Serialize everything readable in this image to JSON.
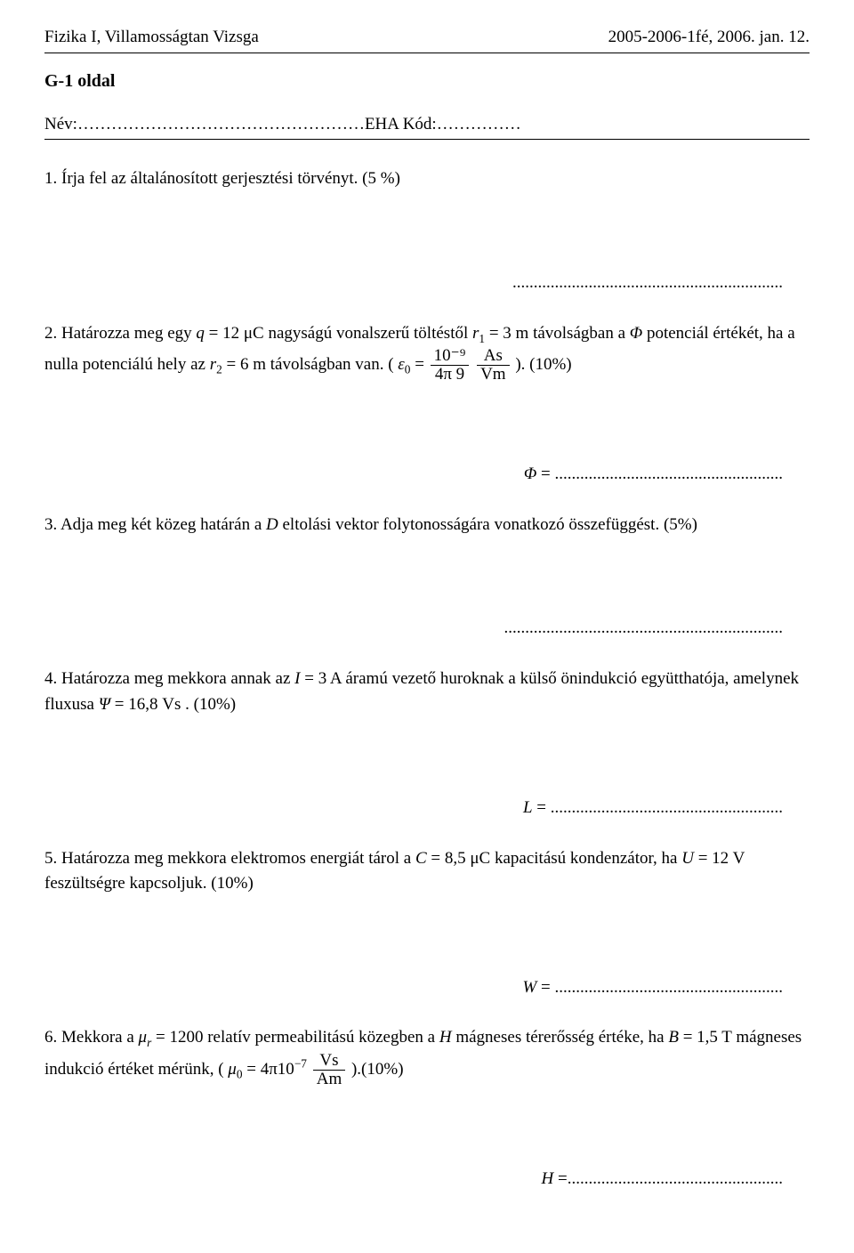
{
  "header": {
    "left": "Fizika I, Villamosságtan Vizsga",
    "right": "2005-2006-1fé, 2006. jan. 12."
  },
  "page_label": "G-1 oldal",
  "name_row": {
    "nev_label": "Név:",
    "nev_dots": "……………………………………………",
    "eha_label": "EHA Kód:",
    "eha_dots": "……………"
  },
  "q1": {
    "num": "1.",
    "text": "Írja fel az általánosított gerjesztési törvényt. (5 %)"
  },
  "blank1": "................................................................",
  "q2": {
    "num": "2.",
    "pre": "Határozza meg egy ",
    "q_expr_var": "q",
    "q_expr_rest": " = 12 μC",
    "mid1": " nagyságú vonalszerű töltéstől ",
    "r1_var": "r",
    "r1_sub": "1",
    "r1_rest": " = 3 m",
    "mid2": " távolságban a ",
    "phi": "Φ",
    "mid3": " potenciál értékét, ha a nulla potenciálú hely az ",
    "r2_var": "r",
    "r2_sub": "2",
    "r2_rest": " = 6 m",
    "mid4": " távolságban van. ( ",
    "eps_var": "ε",
    "eps_sub": "0",
    "eps_eq": " = ",
    "frac_num": "10⁻⁹",
    "frac_den": "4π 9",
    "unit_num": "As",
    "unit_den": "Vm",
    "end": " ). (10%)"
  },
  "blank2_var": "Φ",
  "blank2_rest": " = ......................................................",
  "q3": {
    "num": "3.",
    "pre": "Adja meg két közeg határán a ",
    "D": "D",
    "post": " eltolási vektor folytonosságára vonatkozó összefüggést. (5%)"
  },
  "blank3": "..................................................................",
  "q4": {
    "num": "4.",
    "pre": "Határozza meg mekkora annak az ",
    "I_var": "I",
    "I_rest": " = 3 A",
    "mid": " áramú vezető huroknak a külső önindukció együtthatója, amelynek fluxusa ",
    "psi_var": "Ψ",
    "psi_rest": " = 16,8 Vs",
    "end": " . (10%)"
  },
  "blank4_var": "L",
  "blank4_rest": " = .......................................................",
  "q5": {
    "num": "5.",
    "pre": "Határozza meg mekkora elektromos energiát tárol a ",
    "C_var": "C",
    "C_rest": " = 8,5 μC",
    "mid": " kapacitású kondenzátor, ha ",
    "U_var": "U",
    "U_rest": " = 12 V",
    "end": " feszültségre kapcsoljuk. (10%)"
  },
  "blank5_var": "W",
  "blank5_rest": " = ......................................................",
  "q6": {
    "num": "6.",
    "pre": "Mekkora a ",
    "mu_var": "μ",
    "mu_sub": "r",
    "mu_rest": " = 1200",
    "mid1": " relatív permeabilitású közegben a ",
    "H": "H",
    "mid2": " mágneses térerősség értéke, ha ",
    "B_var": "B",
    "B_rest": " = 1,5 T",
    "mid3": " mágneses indukció értéket mérünk, ( ",
    "mu0_var": "μ",
    "mu0_sub": "0",
    "mu0_eq": " = 4π10",
    "mu0_exp": "−7",
    "unit_num": "Vs",
    "unit_den": "Am",
    "end": " ).(10%)"
  },
  "blank6_var": "H",
  "blank6_rest": " =..................................................."
}
